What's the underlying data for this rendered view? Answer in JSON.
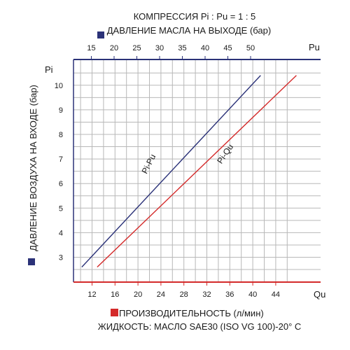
{
  "header": {
    "compression": "КОМПРЕССИЯ Pi : Pu = 1 : 5",
    "top_axis_title": "ДАВЛЕНИЕ МАСЛА НА ВЫХОДЕ (бар)"
  },
  "footer": {
    "bottom_axis_title": "ПРОИЗВОДИТЕЛЬНОСТЬ (л/мин)",
    "fluid": "ЖИДКОСТЬ:  МАСЛО SAE30 (ISO VG 100)-20° C"
  },
  "colors": {
    "blue": "#2b3278",
    "red": "#d42a2a",
    "grid": "#b8b8b8"
  },
  "chart_data": {
    "type": "line",
    "y_axis": {
      "symbol": "Pi",
      "label": "ДАВЛЕНИЕ ВОЗДУХА НА ВХОДЕ (бар)",
      "ticks": [
        3,
        4,
        5,
        6,
        7,
        8,
        9,
        10
      ],
      "range": [
        2.2,
        10.9
      ]
    },
    "x_axis_top": {
      "symbol": "Pu",
      "ticks": [
        15,
        20,
        25,
        30,
        35,
        40,
        45,
        50
      ],
      "range": [
        11,
        56
      ]
    },
    "x_axis_bottom": {
      "symbol": "Qu",
      "ticks": [
        12,
        16,
        20,
        24,
        28,
        32,
        36,
        40,
        44
      ],
      "range": [
        8.8,
        48
      ]
    },
    "grid": true,
    "series": [
      {
        "name": "Pi-Pu",
        "axis": "top",
        "color": "#2b3278",
        "points": [
          {
            "x": 12.9,
            "y": 2.6
          },
          {
            "x": 52.2,
            "y": 10.4
          }
        ]
      },
      {
        "name": "Pi-Qu",
        "axis": "bottom",
        "color": "#d42a2a",
        "points": [
          {
            "x": 12.9,
            "y": 2.6
          },
          {
            "x": 47.6,
            "y": 10.4
          }
        ]
      }
    ]
  }
}
